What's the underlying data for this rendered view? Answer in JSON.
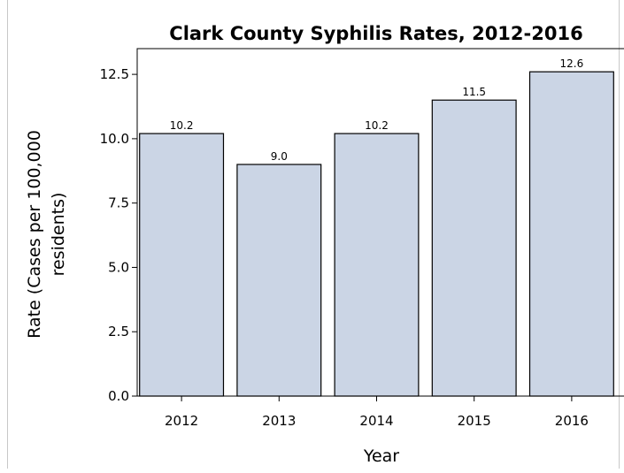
{
  "chart_data": {
    "type": "bar",
    "title": "Clark County Syphilis Rates, 2012-2016",
    "xlabel": "Year",
    "ylabel": [
      "Rate (Cases per 100,000",
      "residents)"
    ],
    "categories": [
      "2012",
      "2013",
      "2014",
      "2015",
      "2016"
    ],
    "values": [
      10.2,
      9.0,
      10.2,
      11.5,
      12.6
    ],
    "data_labels": [
      "10.2",
      "9.0",
      "10.2",
      "11.5",
      "12.6"
    ],
    "y_ticks": [
      "0.0",
      "2.5",
      "5.0",
      "7.5",
      "10.0",
      "12.5"
    ],
    "y_tick_values": [
      0,
      2.5,
      5,
      7.5,
      10,
      12.5
    ],
    "ylim": [
      0,
      13.5
    ],
    "grid": false,
    "bar_fill": "#cbd5e5",
    "bar_stroke": "#000000"
  }
}
